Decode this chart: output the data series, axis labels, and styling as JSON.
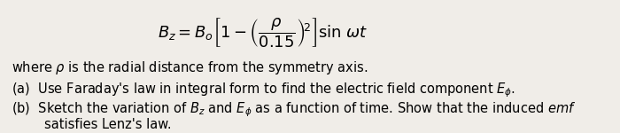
{
  "equation": "$B_z = B_o\\left[1 - \\left(\\dfrac{\\rho}{0.15}\\right)^{\\!2}\\right] \\sin\\, \\omega t$",
  "line1": "where $\\rho$ is the radial distance from the symmetry axis.",
  "line2": "(a)  Use Faraday's law in integral form to find the electric field component $E_\\phi$.",
  "line3a": "(b)  Sketch the variation of $B_z$ and $E_\\phi$ as a function of time. Show that the induced $\\it{emf}$",
  "line3b": "        satisfies Lenz's law.",
  "bg_color": "#f0ede8",
  "text_color": "#000000",
  "eq_fontsize": 13,
  "text_fontsize": 10.5
}
